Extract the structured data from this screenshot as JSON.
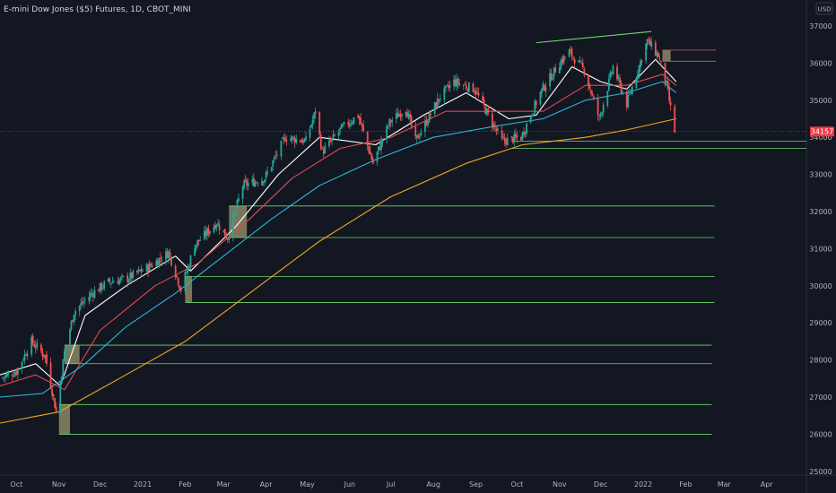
{
  "header": {
    "title": "E-mini Dow Jones ($5) Futures, 1D, CBOT_MINI"
  },
  "currency_label": "USD",
  "colors": {
    "background": "#131722",
    "up_candle": "#26a69a",
    "down_candle": "#ef5350",
    "ma_fast": "#ffffff",
    "ma_mid": "#e0494f",
    "ma_slow": "#2bb7d8",
    "ma_long": "#f5a623",
    "level_green": "#6fd66f",
    "level_red": "#ef5350",
    "zone": "#8c8863",
    "price_badge": "#f23645"
  },
  "chart_data": {
    "type": "candlestick",
    "title": "E-mini Dow Jones ($5) Futures, 1D, CBOT_MINI",
    "ylim": [
      24900,
      37700
    ],
    "y_ticks": [
      25000,
      26000,
      27000,
      28000,
      29000,
      30000,
      31000,
      32000,
      33000,
      34000,
      35000,
      36000,
      37000
    ],
    "y_tick_labels": [
      "25000",
      "26000",
      "27000",
      "28000",
      "29000",
      "30000",
      "31000",
      "32000",
      "33000",
      "34000",
      "35000",
      "36000",
      "37000"
    ],
    "x_tick_labels": [
      "Oct",
      "Nov",
      "Dec",
      "2021",
      "Feb",
      "Mar",
      "Apr",
      "May",
      "Jun",
      "Jul",
      "Aug",
      "Sep",
      "Oct",
      "Nov",
      "Dec",
      "2022",
      "Feb",
      "Mar",
      "Apr"
    ],
    "x_range": [
      "2020-09-19",
      "2022-04-30"
    ],
    "last_price": 34157,
    "last_price_label": "34157",
    "close_path": [
      [
        "2020-09-19",
        27500
      ],
      [
        "2020-10-01",
        27700
      ],
      [
        "2020-10-12",
        28500
      ],
      [
        "2020-10-22",
        28100
      ],
      [
        "2020-10-30",
        26600
      ],
      [
        "2020-11-05",
        28200
      ],
      [
        "2020-11-12",
        29300
      ],
      [
        "2020-11-25",
        29800
      ],
      [
        "2020-12-07",
        30100
      ],
      [
        "2020-12-21",
        30200
      ],
      [
        "2021-01-05",
        30500
      ],
      [
        "2021-01-20",
        30900
      ],
      [
        "2021-01-29",
        29900
      ],
      [
        "2021-02-08",
        31100
      ],
      [
        "2021-02-24",
        31700
      ],
      [
        "2021-03-04",
        31300
      ],
      [
        "2021-03-15",
        32700
      ],
      [
        "2021-03-31",
        32900
      ],
      [
        "2021-04-15",
        34000
      ],
      [
        "2021-04-30",
        33900
      ],
      [
        "2021-05-07",
        34700
      ],
      [
        "2021-05-12",
        33600
      ],
      [
        "2021-05-25",
        34200
      ],
      [
        "2021-06-07",
        34600
      ],
      [
        "2021-06-18",
        33300
      ],
      [
        "2021-06-30",
        34400
      ],
      [
        "2021-07-12",
        34800
      ],
      [
        "2021-07-19",
        33900
      ],
      [
        "2021-08-06",
        35100
      ],
      [
        "2021-08-16",
        35500
      ],
      [
        "2021-08-31",
        35300
      ],
      [
        "2021-09-10",
        34600
      ],
      [
        "2021-09-20",
        33900
      ],
      [
        "2021-10-04",
        34000
      ],
      [
        "2021-10-18",
        35200
      ],
      [
        "2021-11-01",
        36000
      ],
      [
        "2021-11-08",
        36300
      ],
      [
        "2021-11-19",
        35800
      ],
      [
        "2021-11-30",
        34500
      ],
      [
        "2021-12-10",
        35900
      ],
      [
        "2021-12-20",
        34900
      ],
      [
        "2022-01-04",
        36600
      ],
      [
        "2022-01-12",
        36200
      ],
      [
        "2022-01-18",
        35400
      ],
      [
        "2022-01-24",
        34157
      ]
    ],
    "series": [
      {
        "name": "",
        "color": "#ffffff",
        "points": [
          [
            "2020-09-19",
            27600
          ],
          [
            "2020-10-15",
            27900
          ],
          [
            "2020-11-02",
            27300
          ],
          [
            "2020-11-20",
            29200
          ],
          [
            "2020-12-20",
            30000
          ],
          [
            "2021-01-25",
            30800
          ],
          [
            "2021-02-05",
            30400
          ],
          [
            "2021-03-10",
            31600
          ],
          [
            "2021-04-10",
            33000
          ],
          [
            "2021-05-10",
            34000
          ],
          [
            "2021-06-20",
            33800
          ],
          [
            "2021-07-25",
            34600
          ],
          [
            "2021-08-25",
            35200
          ],
          [
            "2021-09-25",
            34500
          ],
          [
            "2021-10-15",
            34600
          ],
          [
            "2021-11-10",
            35900
          ],
          [
            "2021-12-01",
            35500
          ],
          [
            "2021-12-20",
            35300
          ],
          [
            "2022-01-10",
            36100
          ],
          [
            "2022-01-25",
            35500
          ]
        ]
      },
      {
        "name": "",
        "color": "#e0494f",
        "points": [
          [
            "2020-09-19",
            27300
          ],
          [
            "2020-10-15",
            27600
          ],
          [
            "2020-11-05",
            27200
          ],
          [
            "2020-12-01",
            28800
          ],
          [
            "2021-01-10",
            30000
          ],
          [
            "2021-02-10",
            30600
          ],
          [
            "2021-03-20",
            31800
          ],
          [
            "2021-04-20",
            32900
          ],
          [
            "2021-05-25",
            33700
          ],
          [
            "2021-07-01",
            34000
          ],
          [
            "2021-08-10",
            34700
          ],
          [
            "2021-09-20",
            34700
          ],
          [
            "2021-10-20",
            34700
          ],
          [
            "2021-11-20",
            35400
          ],
          [
            "2021-12-20",
            35400
          ],
          [
            "2022-01-15",
            35700
          ],
          [
            "2022-01-25",
            35400
          ]
        ]
      },
      {
        "name": "",
        "color": "#2bb7d8",
        "points": [
          [
            "2020-09-19",
            27000
          ],
          [
            "2020-10-20",
            27100
          ],
          [
            "2020-11-20",
            27900
          ],
          [
            "2020-12-20",
            28900
          ],
          [
            "2021-01-25",
            29800
          ],
          [
            "2021-03-01",
            30800
          ],
          [
            "2021-04-05",
            31800
          ],
          [
            "2021-05-10",
            32700
          ],
          [
            "2021-06-20",
            33400
          ],
          [
            "2021-08-01",
            34000
          ],
          [
            "2021-09-15",
            34300
          ],
          [
            "2021-10-20",
            34500
          ],
          [
            "2021-11-20",
            35000
          ],
          [
            "2021-12-20",
            35200
          ],
          [
            "2022-01-15",
            35500
          ],
          [
            "2022-01-25",
            35200
          ]
        ]
      },
      {
        "name": "",
        "color": "#f5a623",
        "points": [
          [
            "2020-09-19",
            26300
          ],
          [
            "2020-11-01",
            26600
          ],
          [
            "2020-12-15",
            27500
          ],
          [
            "2021-02-01",
            28500
          ],
          [
            "2021-03-20",
            29800
          ],
          [
            "2021-05-10",
            31200
          ],
          [
            "2021-07-01",
            32400
          ],
          [
            "2021-08-25",
            33300
          ],
          [
            "2021-10-05",
            33800
          ],
          [
            "2021-11-20",
            34000
          ],
          [
            "2021-12-20",
            34200
          ],
          [
            "2022-01-25",
            34500
          ]
        ]
      }
    ],
    "horizontal_levels": [
      {
        "price": 33900,
        "start": "2021-09-27",
        "end": "2022-04-30",
        "color": "#6fd66f"
      },
      {
        "price": 33700,
        "start": "2021-09-27",
        "end": "2022-04-30",
        "color": "#6fd66f"
      },
      {
        "price": 32150,
        "start": "2021-03-05",
        "end": "2022-02-22",
        "color": "#6fd66f"
      },
      {
        "price": 31300,
        "start": "2021-03-05",
        "end": "2022-02-22",
        "color": "#6fd66f"
      },
      {
        "price": 30250,
        "start": "2021-02-01",
        "end": "2022-02-22",
        "color": "#6fd66f"
      },
      {
        "price": 29550,
        "start": "2021-02-01",
        "end": "2022-02-22",
        "color": "#6fd66f"
      },
      {
        "price": 28400,
        "start": "2020-11-05",
        "end": "2022-02-20",
        "color": "#6fd66f"
      },
      {
        "price": 27900,
        "start": "2020-11-05",
        "end": "2022-02-20",
        "color": "#6fd66f"
      },
      {
        "price": 26800,
        "start": "2020-11-01",
        "end": "2022-02-20",
        "color": "#6fd66f"
      },
      {
        "price": 26000,
        "start": "2020-11-01",
        "end": "2022-02-20",
        "color": "#6fd66f"
      },
      {
        "price": 36350,
        "start": "2022-01-15",
        "end": "2022-02-23",
        "color": "#ef5350"
      },
      {
        "price": 36050,
        "start": "2022-01-15",
        "end": "2022-02-23",
        "color": "#ef5350"
      }
    ],
    "zones": [
      {
        "start": "2020-11-01",
        "end": "2020-11-09",
        "top": 26800,
        "bottom": 26000
      },
      {
        "start": "2020-11-05",
        "end": "2020-11-16",
        "top": 28400,
        "bottom": 27900
      },
      {
        "start": "2021-02-01",
        "end": "2021-02-06",
        "top": 30250,
        "bottom": 29550
      },
      {
        "start": "2021-03-05",
        "end": "2021-03-18",
        "top": 32150,
        "bottom": 31300
      },
      {
        "start": "2022-01-15",
        "end": "2022-01-21",
        "top": 36350,
        "bottom": 36050
      }
    ],
    "trendline": {
      "start": [
        "2021-10-15",
        36550
      ],
      "end": [
        "2022-01-07",
        36850
      ],
      "color": "#6fd66f"
    },
    "grid": false
  }
}
